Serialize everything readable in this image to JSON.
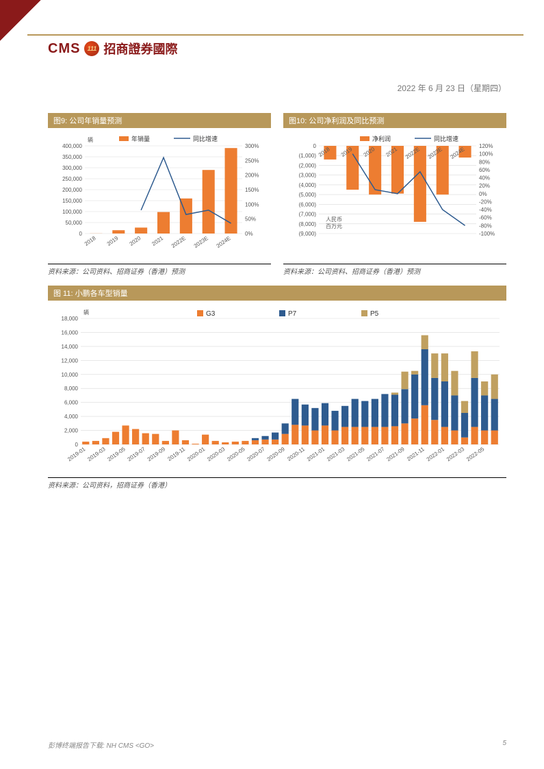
{
  "header": {
    "cms": "CMS",
    "logo_text": "111",
    "cn_name": "招商證券國際",
    "date": "2022 年 6 月 23 日（星期四）"
  },
  "chart9": {
    "title": "图9:  公司年销量预测",
    "type": "bar+line",
    "unit_label": "辆",
    "bar_legend": "年销量",
    "line_legend": "同比增速",
    "categories": [
      "2018",
      "2019",
      "2020",
      "2021",
      "2022E",
      "2023E",
      "2024E"
    ],
    "bar_values": [
      500,
      15000,
      27000,
      98000,
      160000,
      290000,
      390000
    ],
    "line_values": [
      null,
      null,
      80,
      260,
      65,
      80,
      35
    ],
    "y1_min": 0,
    "y1_max": 400000,
    "y1_step": 50000,
    "y2_min": 0,
    "y2_max": 300,
    "y2_step": 50,
    "y2_suffix": "%",
    "bar_color": "#ed7d31",
    "line_color": "#2e5b8f",
    "grid_color": "#d9d9d9",
    "source": "资料来源：公司资料、招商证券（香港）预测"
  },
  "chart10": {
    "title": "图10:  公司净利润及同比预测",
    "type": "bar+line",
    "unit_label": "人民币\n百万元",
    "bar_legend": "净利润",
    "line_legend": "同比增速",
    "categories": [
      "2018",
      "2019",
      "2020",
      "2021",
      "2022E",
      "2023E",
      "2024E"
    ],
    "bar_values": [
      -1400,
      -4500,
      -5000,
      -4900,
      -7800,
      -5000,
      -1200
    ],
    "line_values": [
      null,
      100,
      10,
      0,
      55,
      -40,
      -80
    ],
    "y1_min": -9000,
    "y1_max": 0,
    "y1_step": 1000,
    "y2_min": -100,
    "y2_max": 120,
    "y2_step": 20,
    "y2_suffix": "%",
    "bar_color": "#ed7d31",
    "line_color": "#2e5b8f",
    "grid_color": "#d9d9d9",
    "source": "资料来源：公司资料、招商证券（香港）预测"
  },
  "chart11": {
    "title": "图 11:  小鹏各车型销量",
    "type": "stacked-bar",
    "unit_label": "辆",
    "series": [
      {
        "name": "G3",
        "color": "#ed7d31"
      },
      {
        "name": "P7",
        "color": "#2e5b8f"
      },
      {
        "name": "P5",
        "color": "#c0a060"
      }
    ],
    "categories": [
      "2019-01",
      "2019-03",
      "2019-05",
      "2019-07",
      "2019-09",
      "2019-11",
      "2020-01",
      "2020-03",
      "2020-05",
      "2020-07",
      "2020-09",
      "2020-11",
      "2021-01",
      "2021-03",
      "2021-05",
      "2021-07",
      "2021-09",
      "2021-11",
      "2022-01",
      "2022-03",
      "2022-05"
    ],
    "points_per_cat": 2,
    "g3": [
      400,
      500,
      900,
      1800,
      2700,
      2200,
      1600,
      1500,
      500,
      2000,
      600,
      100,
      1400,
      500,
      300,
      400,
      500,
      600,
      700,
      700,
      1500,
      2800,
      2700,
      2000,
      2700,
      2000,
      2500,
      2500,
      2500,
      2500,
      2500,
      2600,
      3000,
      3700,
      5600,
      3500,
      2500,
      2000,
      1000,
      2500,
      2000,
      2000
    ],
    "p7": [
      0,
      0,
      0,
      0,
      0,
      0,
      0,
      0,
      0,
      0,
      0,
      0,
      0,
      0,
      0,
      0,
      0,
      300,
      500,
      1000,
      1500,
      3700,
      3000,
      3200,
      3200,
      2800,
      3000,
      4000,
      3700,
      4000,
      4700,
      4500,
      4900,
      6300,
      8000,
      6000,
      6500,
      5000,
      3500,
      7000,
      5000,
      4500
    ],
    "p5": [
      0,
      0,
      0,
      0,
      0,
      0,
      0,
      0,
      0,
      0,
      0,
      0,
      0,
      0,
      0,
      0,
      0,
      0,
      0,
      0,
      0,
      0,
      0,
      0,
      0,
      0,
      0,
      0,
      0,
      0,
      0,
      300,
      2500,
      500,
      2000,
      3500,
      4000,
      3500,
      1700,
      3800,
      2000,
      3500
    ],
    "y_min": 0,
    "y_max": 18000,
    "y_step": 2000,
    "grid_color": "#d9d9d9",
    "source": "资料来源：公司资料，招商证券（香港）"
  },
  "footer": {
    "left": "彭博终端报告下载: NH CMS <GO>",
    "page": "5"
  }
}
